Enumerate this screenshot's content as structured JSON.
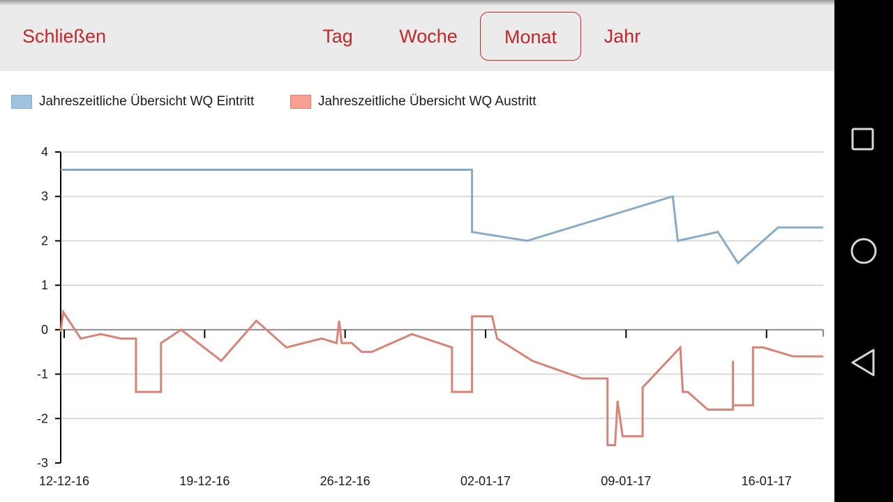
{
  "header": {
    "close_label": "Schließen",
    "tabs": [
      {
        "label": "Tag",
        "active": false
      },
      {
        "label": "Woche",
        "active": false
      },
      {
        "label": "Monat",
        "active": true
      },
      {
        "label": "Jahr",
        "active": false
      }
    ],
    "accent_color": "#c0282a"
  },
  "chart_data": {
    "type": "line",
    "x_tick_labels": [
      "12-12-16",
      "19-12-16",
      "26-12-16",
      "02-01-17",
      "09-01-17",
      "16-01-17"
    ],
    "xlim": [
      "2016-12-12",
      "2017-01-19"
    ],
    "ylim": [
      -3,
      4
    ],
    "y_ticks": [
      4,
      3,
      2,
      1,
      0,
      -1,
      -2,
      -3
    ],
    "grid": true,
    "legend_placement": "top-left",
    "series": [
      {
        "name": "Jahreszeitliche Übersicht WQ Eintritt",
        "color": "#8aabc5",
        "legend_color": "#9fc2de",
        "points": [
          [
            "2016-12-12",
            3.6
          ],
          [
            "2017-01-01 12:00",
            3.6
          ],
          [
            "2017-01-01 12:00",
            2.2
          ],
          [
            "2017-01-04 06:00",
            2.0
          ],
          [
            "2017-01-11 12:00",
            3.0
          ],
          [
            "2017-01-11 18:00",
            2.0
          ],
          [
            "2017-01-13 18:00",
            2.2
          ],
          [
            "2017-01-14 18:00",
            1.5
          ],
          [
            "2017-01-16 18:00",
            2.3
          ],
          [
            "2017-01-19",
            2.3
          ]
        ]
      },
      {
        "name": "Jahreszeitliche Übersicht WQ Austritt",
        "color": "#d98276",
        "legend_color": "#f5a093",
        "points": [
          [
            "2016-12-12",
            -0.05
          ],
          [
            "2016-12-12 03:00",
            0.4
          ],
          [
            "2016-12-13",
            -0.2
          ],
          [
            "2016-12-14",
            -0.1
          ],
          [
            "2016-12-15",
            -0.2
          ],
          [
            "2016-12-15 18:00",
            -0.2
          ],
          [
            "2016-12-15 18:00",
            -1.4
          ],
          [
            "2016-12-17",
            -1.4
          ],
          [
            "2016-12-17",
            -0.3
          ],
          [
            "2016-12-18",
            0.0
          ],
          [
            "2016-12-20",
            -0.7
          ],
          [
            "2016-12-21 18:00",
            0.2
          ],
          [
            "2016-12-23",
            -0.3
          ],
          [
            "2016-12-23 06:00",
            -0.4
          ],
          [
            "2016-12-25",
            -0.2
          ],
          [
            "2016-12-25 18:00",
            -0.3
          ],
          [
            "2016-12-25 21:00",
            0.2
          ],
          [
            "2016-12-26",
            -0.3
          ],
          [
            "2016-12-26 12:00",
            -0.3
          ],
          [
            "2016-12-27",
            -0.5
          ],
          [
            "2016-12-27 12:00",
            -0.5
          ],
          [
            "2016-12-29 12:00",
            -0.1
          ],
          [
            "2016-12-31 12:00",
            -0.4
          ],
          [
            "2016-12-31 12:00",
            -1.4
          ],
          [
            "2017-01-01 12:00",
            -1.4
          ],
          [
            "2017-01-01 12:00",
            0.3
          ],
          [
            "2017-01-02 12:00",
            0.3
          ],
          [
            "2017-01-02 18:00",
            -0.2
          ],
          [
            "2017-01-04 12:00",
            -0.7
          ],
          [
            "2017-01-07",
            -1.1
          ],
          [
            "2017-01-08 06:00",
            -1.1
          ],
          [
            "2017-01-08 06:00",
            -2.6
          ],
          [
            "2017-01-08 15:00",
            -2.6
          ],
          [
            "2017-01-08 18:00",
            -1.6
          ],
          [
            "2017-01-09",
            -2.4
          ],
          [
            "2017-01-10",
            -2.4
          ],
          [
            "2017-01-10",
            -1.3
          ],
          [
            "2017-01-11 21:00",
            -0.4
          ],
          [
            "2017-01-12",
            -1.4
          ],
          [
            "2017-01-12 06:00",
            -1.4
          ],
          [
            "2017-01-13 06:00",
            -1.8
          ],
          [
            "2017-01-14 12:00",
            -1.8
          ],
          [
            "2017-01-14 12:00",
            -0.7
          ],
          [
            "2017-01-14 12:00",
            -1.7
          ],
          [
            "2017-01-15 12:00",
            -1.7
          ],
          [
            "2017-01-15 12:00",
            -0.4
          ],
          [
            "2017-01-16",
            -0.4
          ],
          [
            "2017-01-17 12:00",
            -0.6
          ],
          [
            "2017-01-19",
            -0.6
          ]
        ]
      }
    ]
  },
  "nav": [
    {
      "icon": "recents-square-icon"
    },
    {
      "icon": "home-circle-icon"
    },
    {
      "icon": "back-triangle-icon"
    }
  ]
}
